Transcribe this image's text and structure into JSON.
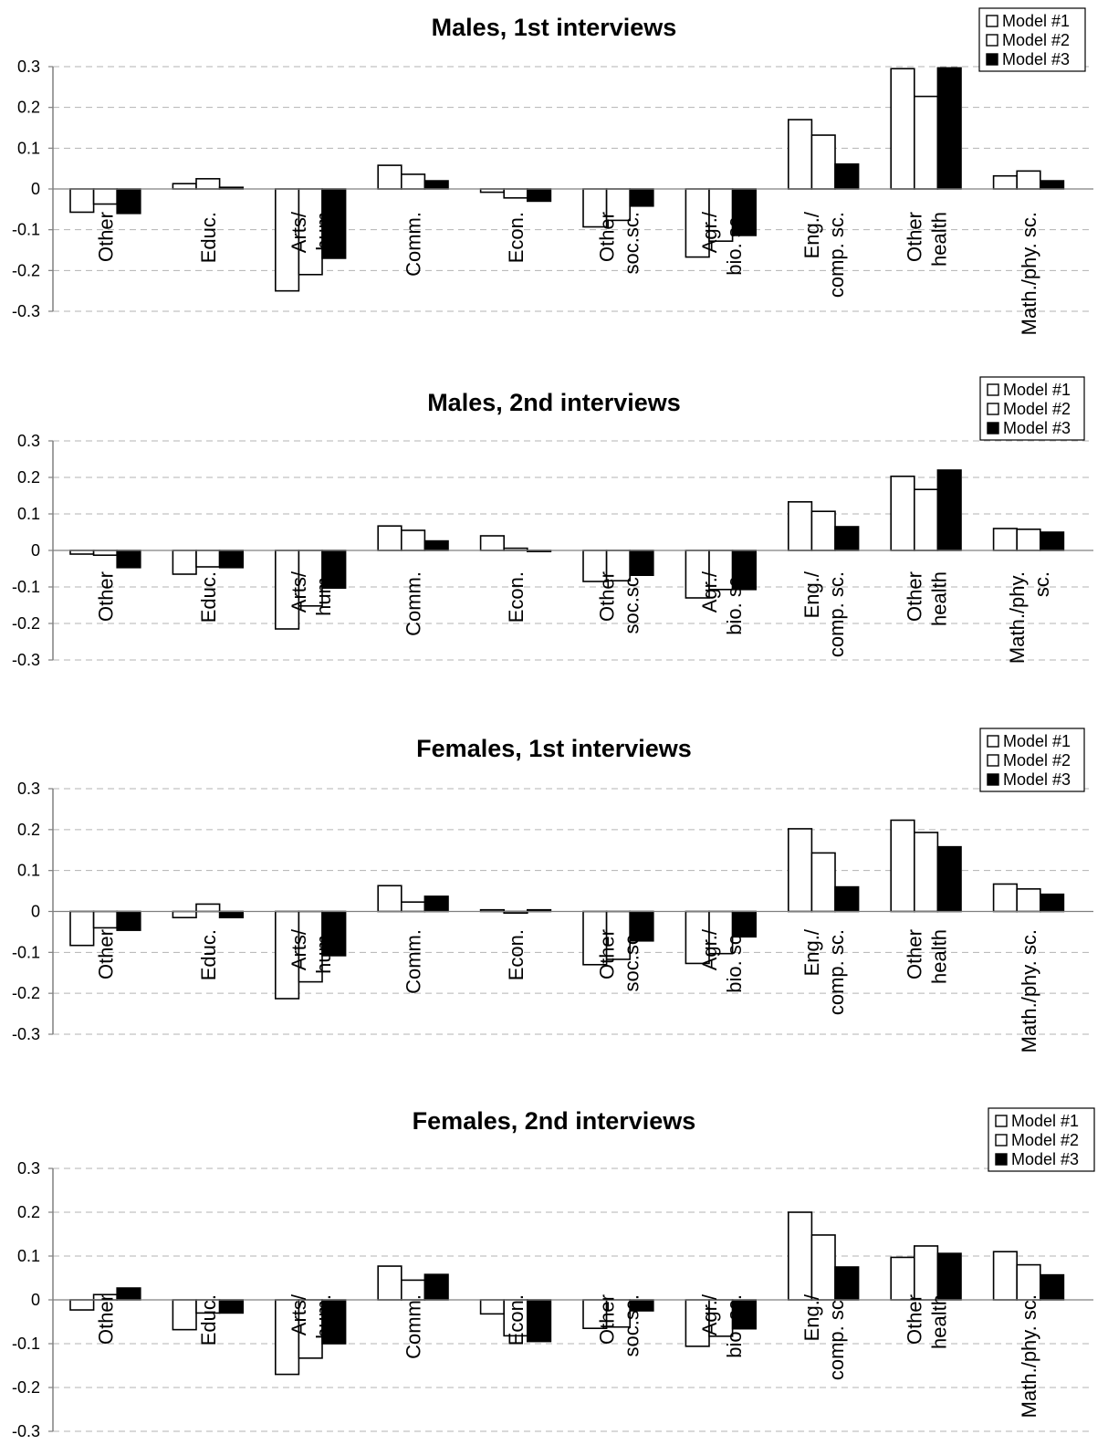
{
  "chart_data": [
    {
      "type": "bar",
      "title": "Males, 1st interviews",
      "categories": [
        [
          "Other"
        ],
        [
          "Educ."
        ],
        [
          "Arts/",
          "hum"
        ],
        [
          "Comm."
        ],
        [
          "Econ."
        ],
        [
          "Other",
          "soc.sc."
        ],
        [
          "Agr./",
          "bio. sc."
        ],
        [
          "Eng./",
          "comp. sc."
        ],
        [
          "Other",
          "health"
        ],
        [
          "Math./phy. sc."
        ]
      ],
      "series": [
        {
          "name": "Model #1",
          "values": [
            -0.057,
            0.013,
            -0.25,
            0.058,
            -0.008,
            -0.093,
            -0.167,
            0.17,
            0.295,
            0.032
          ]
        },
        {
          "name": "Model #2",
          "values": [
            -0.037,
            0.025,
            -0.21,
            0.036,
            -0.022,
            -0.077,
            -0.128,
            0.132,
            0.227,
            0.044
          ]
        },
        {
          "name": "Model #3",
          "values": [
            -0.06,
            0.004,
            -0.17,
            0.02,
            -0.03,
            -0.042,
            -0.114,
            0.061,
            0.297,
            0.02
          ]
        }
      ],
      "ylim": [
        -0.3,
        0.3
      ],
      "yticks": [
        "0.3",
        "0.2",
        "0.1",
        "0",
        "-0.1",
        "-0.2",
        "-0.3"
      ],
      "grid": "dashed horizontal",
      "legend": "top-right"
    },
    {
      "type": "bar",
      "title": "Males, 2nd interviews",
      "categories": [
        [
          "Other"
        ],
        [
          "Educ."
        ],
        [
          "Arts/",
          "hum."
        ],
        [
          "Comm."
        ],
        [
          "Econ."
        ],
        [
          "Other",
          "soc.sc."
        ],
        [
          "Agr./",
          "bio. sc."
        ],
        [
          "Eng./",
          "comp. sc."
        ],
        [
          "Other",
          "health"
        ],
        [
          "Math./phy.",
          "sc."
        ]
      ],
      "series": [
        {
          "name": "Model #1",
          "values": [
            -0.01,
            -0.065,
            -0.215,
            0.067,
            0.04,
            -0.085,
            -0.13,
            0.133,
            0.203,
            0.06
          ]
        },
        {
          "name": "Model #2",
          "values": [
            -0.013,
            -0.045,
            -0.152,
            0.055,
            0.006,
            -0.083,
            -0.107,
            0.107,
            0.167,
            0.058
          ]
        },
        {
          "name": "Model #3",
          "values": [
            -0.047,
            -0.047,
            -0.103,
            0.026,
            0.0,
            -0.068,
            -0.107,
            0.065,
            0.22,
            0.05
          ]
        }
      ],
      "ylim": [
        -0.3,
        0.3
      ],
      "yticks": [
        "0.3",
        "0.2",
        "0.1",
        "0",
        "-0.1",
        "-0.2",
        "-0.3"
      ],
      "grid": "dashed horizontal",
      "legend": "top-right"
    },
    {
      "type": "bar",
      "title": "Females, 1st interviews",
      "categories": [
        [
          "Other"
        ],
        [
          "Educ."
        ],
        [
          "Arts/",
          "hum."
        ],
        [
          "Comm."
        ],
        [
          "Econ."
        ],
        [
          "Other",
          "soc.sc."
        ],
        [
          "Agr./",
          "bio. sc."
        ],
        [
          "Eng./",
          "comp. sc."
        ],
        [
          "Other",
          "health"
        ],
        [
          "Math./phy. sc."
        ]
      ],
      "series": [
        {
          "name": "Model #1",
          "values": [
            -0.083,
            -0.015,
            -0.213,
            0.063,
            0.004,
            -0.13,
            -0.127,
            0.202,
            0.223,
            0.067
          ]
        },
        {
          "name": "Model #2",
          "values": [
            -0.04,
            0.018,
            -0.172,
            0.023,
            -0.004,
            -0.117,
            -0.103,
            0.143,
            0.193,
            0.055
          ]
        },
        {
          "name": "Model #3",
          "values": [
            -0.046,
            -0.015,
            -0.108,
            0.037,
            0.004,
            -0.072,
            -0.062,
            0.06,
            0.158,
            0.042
          ]
        }
      ],
      "ylim": [
        -0.3,
        0.3
      ],
      "yticks": [
        "0.3",
        "0.2",
        "0.1",
        "0",
        "-0.1",
        "-0.2",
        "-0.3"
      ],
      "grid": "dashed horizontal",
      "legend": "top-right"
    },
    {
      "type": "bar",
      "title": "Females, 2nd interviews",
      "categories": [
        [
          "Other"
        ],
        [
          "Educ."
        ],
        [
          "Arts/",
          "hum."
        ],
        [
          "Comm."
        ],
        [
          "Econ."
        ],
        [
          "Other",
          "soc.sc."
        ],
        [
          "Agr./",
          "bio. sc."
        ],
        [
          "Eng./",
          "comp. sc."
        ],
        [
          "Other",
          "health"
        ],
        [
          "Math./phy. sc."
        ]
      ],
      "series": [
        {
          "name": "Model #1",
          "values": [
            -0.023,
            -0.068,
            -0.17,
            0.077,
            -0.032,
            -0.065,
            -0.106,
            0.2,
            0.097,
            0.11
          ]
        },
        {
          "name": "Model #2",
          "values": [
            0.012,
            -0.03,
            -0.133,
            0.045,
            -0.082,
            -0.062,
            -0.083,
            0.148,
            0.123,
            0.08
          ]
        },
        {
          "name": "Model #3",
          "values": [
            0.027,
            -0.03,
            -0.1,
            0.058,
            -0.095,
            -0.025,
            -0.066,
            0.075,
            0.106,
            0.057
          ]
        }
      ],
      "ylim": [
        -0.3,
        0.3
      ],
      "yticks": [
        "0.3",
        "0.2",
        "0.1",
        "0",
        "-0.1",
        "-0.2",
        "-0.3"
      ],
      "grid": "dashed horizontal",
      "legend": "top-right"
    }
  ],
  "colors": {
    "model1": "#ffffff",
    "model2": "#ffffff",
    "model3": "#000000",
    "grid": "#b3b3b3",
    "axis": "#808080",
    "bar_outline": "#000000"
  }
}
